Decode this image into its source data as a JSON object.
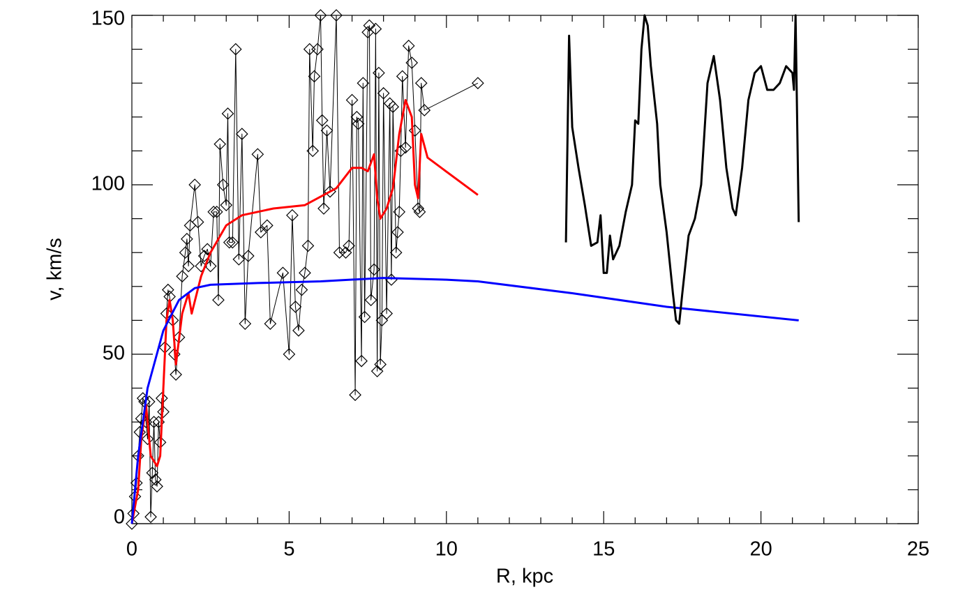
{
  "chart_data": {
    "type": "line",
    "xlabel": "R, kpc",
    "ylabel": "v, km/s",
    "xlim": [
      0,
      25
    ],
    "ylim": [
      0,
      150
    ],
    "xticks": [
      0,
      5,
      10,
      15,
      20,
      25
    ],
    "yticks": [
      0,
      50,
      100,
      150
    ],
    "xminorticks": [
      1,
      2,
      3,
      4,
      6,
      7,
      8,
      9,
      11,
      12,
      13,
      14,
      16,
      17,
      18,
      19,
      21,
      22,
      23,
      24
    ],
    "yminorticks": [
      10,
      20,
      30,
      40,
      60,
      70,
      80,
      90,
      110,
      120,
      130,
      140
    ],
    "series": [
      {
        "color": "#000000",
        "width": 1,
        "marker": "diamond",
        "x": [
          0.0,
          0.05,
          0.1,
          0.15,
          0.2,
          0.25,
          0.3,
          0.35,
          0.4,
          0.45,
          0.5,
          0.55,
          0.6,
          0.65,
          0.7,
          0.75,
          0.8,
          0.85,
          0.9,
          0.95,
          1.0,
          1.05,
          1.1,
          1.15,
          1.2,
          1.3,
          1.35,
          1.4,
          1.5,
          1.6,
          1.7,
          1.75,
          1.8,
          1.85,
          2.0,
          2.1,
          2.2,
          2.3,
          2.4,
          2.5,
          2.6,
          2.7,
          2.75,
          2.8,
          2.9,
          3.0,
          3.05,
          3.1,
          3.2,
          3.3,
          3.4,
          3.5,
          3.6,
          3.7,
          4.0,
          4.1,
          4.3,
          4.4,
          4.8,
          5.0,
          5.1,
          5.2,
          5.3,
          5.4,
          5.5,
          5.6,
          5.65,
          5.75,
          5.8,
          5.9,
          6.0,
          6.05,
          6.1,
          6.2,
          6.3,
          6.5,
          6.6,
          6.8,
          6.9,
          7.0,
          7.1,
          7.15,
          7.2,
          7.3,
          7.35,
          7.4,
          7.5,
          7.55,
          7.6,
          7.7,
          7.75,
          7.8,
          7.85,
          7.9,
          7.95,
          8.0,
          8.1,
          8.2,
          8.25,
          8.3,
          8.4,
          8.45,
          8.5,
          8.55,
          8.6,
          8.7,
          8.8,
          8.9,
          9.0,
          9.1,
          9.15,
          9.2,
          9.3,
          11.0
        ],
        "values": [
          0,
          3,
          8,
          12,
          20,
          27,
          31,
          37,
          36,
          30,
          25,
          36,
          2,
          15,
          30,
          13,
          11,
          30,
          24,
          37,
          33,
          52,
          62,
          69,
          67,
          60,
          50,
          44,
          55,
          73,
          80,
          84,
          76,
          88,
          100,
          89,
          76,
          79,
          81,
          76,
          92,
          92,
          66,
          112,
          100,
          94,
          121,
          83,
          83,
          140,
          78,
          115,
          59,
          79,
          109,
          86,
          88,
          59,
          74,
          50,
          91,
          64,
          57,
          69,
          74,
          82,
          140,
          110,
          132,
          140,
          150,
          119,
          93,
          116,
          98,
          150,
          80,
          80,
          82,
          125,
          38,
          120,
          118,
          48,
          130,
          61,
          145,
          147,
          66,
          75,
          146,
          45,
          133,
          47,
          60,
          127,
          62,
          124,
          72,
          123,
          80,
          86,
          92,
          110,
          132,
          111,
          141,
          136,
          116,
          93,
          92,
          130,
          122,
          130
        ]
      },
      {
        "color": "#ff0000",
        "width": 3,
        "x": [
          0,
          0.2,
          0.3,
          0.45,
          0.6,
          0.8,
          0.9,
          1.1,
          1.2,
          1.3,
          1.4,
          1.6,
          1.8,
          1.9,
          2.2,
          2.5,
          3.0,
          3.5,
          4.5,
          5.5,
          6.5,
          7.0,
          7.3,
          7.5,
          7.7,
          7.8,
          7.9,
          8.1,
          8.3,
          8.5,
          8.7,
          8.9,
          9.0,
          9.1,
          9.2,
          9.4,
          11.0
        ],
        "values": [
          0,
          10,
          25,
          35,
          20,
          17,
          20,
          60,
          66,
          60,
          47,
          62,
          68,
          62,
          73,
          80,
          88,
          91,
          93,
          94,
          99,
          105,
          105,
          104,
          109,
          96,
          90,
          93,
          99,
          115,
          125,
          120,
          100,
          96,
          115,
          108,
          97
        ]
      },
      {
        "color": "#0000ff",
        "width": 3,
        "x": [
          0,
          0.2,
          0.5,
          1,
          1.5,
          2,
          2.5,
          4,
          6,
          8,
          10,
          11,
          14,
          17,
          21.2
        ],
        "values": [
          0,
          20,
          40,
          57,
          66,
          69.5,
          70.5,
          71,
          71.5,
          72.5,
          72,
          71.5,
          68,
          64,
          60
        ]
      },
      {
        "color": "#000000",
        "width": 3,
        "x": [
          13.8,
          13.9,
          14.0,
          14.2,
          14.4,
          14.6,
          14.8,
          14.9,
          15.0,
          15.1,
          15.2,
          15.3,
          15.5,
          15.7,
          15.9,
          16.0,
          16.1,
          16.2,
          16.3,
          16.4,
          16.5,
          16.7,
          16.8,
          17.0,
          17.2,
          17.3,
          17.4,
          17.5,
          17.7,
          17.9,
          18.1,
          18.3,
          18.5,
          18.7,
          18.9,
          19.1,
          19.2,
          19.4,
          19.6,
          19.8,
          20.0,
          20.2,
          20.4,
          20.6,
          20.8,
          21.0,
          21.05,
          21.1,
          21.2
        ],
        "values": [
          83,
          144,
          117,
          105,
          94,
          82,
          83,
          91,
          74,
          74,
          85,
          78,
          82,
          92,
          100,
          119,
          118,
          140,
          150,
          147,
          135,
          118,
          100,
          86,
          68,
          60,
          59,
          68,
          85,
          90,
          100,
          130,
          138,
          125,
          105,
          93,
          91,
          105,
          125,
          133,
          135,
          128,
          128,
          130,
          135,
          133,
          128,
          150,
          89
        ]
      }
    ]
  }
}
